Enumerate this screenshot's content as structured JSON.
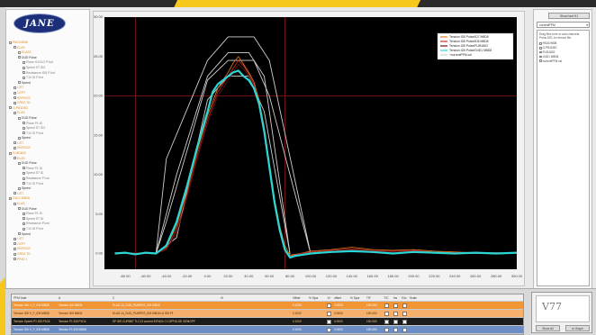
{
  "app": {
    "logo_text": "JANE"
  },
  "tree": {
    "items": [
      {
        "label": "PAD1H808",
        "cls": "orange",
        "indent": 0
      },
      {
        "label": "ELAS",
        "cls": "orange",
        "indent": 1
      },
      {
        "label": "ELAS2",
        "cls": "orange",
        "indent": 2
      },
      {
        "label": "DUD Pulse",
        "cls": "dark",
        "indent": 2
      },
      {
        "label": "Plane H1OLD P1nd",
        "cls": "gray",
        "indent": 3
      },
      {
        "label": "Speed ST ID2",
        "cls": "gray",
        "indent": 3
      },
      {
        "label": "Resistance ID8 P1nd",
        "cls": "gray",
        "indent": 3
      },
      {
        "label": "T10 ID P1nd",
        "cls": "gray",
        "indent": 3
      },
      {
        "label": "Speed",
        "cls": "dark",
        "indent": 2
      },
      {
        "label": "LIST",
        "cls": "orange",
        "indent": 1
      },
      {
        "label": "CEPT",
        "cls": "orange",
        "indent": 1
      },
      {
        "label": "SERVICE",
        "cls": "orange",
        "indent": 1
      },
      {
        "label": "GRD2 TD",
        "cls": "orange",
        "indent": 1
      },
      {
        "label": "G-PB1D6D",
        "cls": "orange",
        "indent": 0
      },
      {
        "label": "ELAS",
        "cls": "orange",
        "indent": 1
      },
      {
        "label": "DUD Pulse",
        "cls": "dark",
        "indent": 2
      },
      {
        "label": "Plane P1 ID",
        "cls": "gray",
        "indent": 3
      },
      {
        "label": "Speed ST ID2",
        "cls": "gray",
        "indent": 3
      },
      {
        "label": "T10 ID P1nd",
        "cls": "gray",
        "indent": 3
      },
      {
        "label": "Speed",
        "cls": "dark",
        "indent": 2
      },
      {
        "label": "LIST",
        "cls": "orange",
        "indent": 1
      },
      {
        "label": "SERVICE",
        "cls": "orange",
        "indent": 1
      },
      {
        "label": "FLIB1802",
        "cls": "orange",
        "indent": 0
      },
      {
        "label": "ELAS",
        "cls": "orange",
        "indent": 1
      },
      {
        "label": "DUD Pulse",
        "cls": "dark",
        "indent": 2
      },
      {
        "label": "Plane P1 ID",
        "cls": "gray",
        "indent": 3
      },
      {
        "label": "Speed ST ID",
        "cls": "gray",
        "indent": 3
      },
      {
        "label": "Resistance P1nd",
        "cls": "gray",
        "indent": 3
      },
      {
        "label": "T10 ID P1nd",
        "cls": "gray",
        "indent": 3
      },
      {
        "label": "Speed",
        "cls": "dark",
        "indent": 2
      },
      {
        "label": "LIST",
        "cls": "orange",
        "indent": 1
      },
      {
        "label": "G4D1 M8D8",
        "cls": "orange",
        "indent": 0
      },
      {
        "label": "ELAS",
        "cls": "orange",
        "indent": 1
      },
      {
        "label": "DUD Pulse",
        "cls": "dark",
        "indent": 2
      },
      {
        "label": "Plane P1 ID",
        "cls": "gray",
        "indent": 3
      },
      {
        "label": "Speed ST ID",
        "cls": "gray",
        "indent": 3
      },
      {
        "label": "Resistance P1nd",
        "cls": "gray",
        "indent": 3
      },
      {
        "label": "T10 ID P1nd",
        "cls": "gray",
        "indent": 3
      },
      {
        "label": "Speed",
        "cls": "dark",
        "indent": 2
      },
      {
        "label": "LIST",
        "cls": "orange",
        "indent": 1
      },
      {
        "label": "CEPT",
        "cls": "orange",
        "indent": 1
      },
      {
        "label": "SERVICE",
        "cls": "orange",
        "indent": 1
      },
      {
        "label": "GRD2 TD",
        "cls": "orange",
        "indent": 1
      },
      {
        "label": "PFAD 1",
        "cls": "orange",
        "indent": 1
      }
    ]
  },
  "right_panel": {
    "button_label": "Show last H1",
    "select_value": "currentPFM",
    "hint": "Drag files here to add channels. Press DEL to remove file.",
    "items": [
      "PAD1H808",
      "G-PB1D6D",
      "FLIB1802",
      "G4D1 M8D8",
      "currentPFM.csl"
    ]
  },
  "grid": {
    "header": [
      "PFM Date",
      "A",
      "C",
      "Vl",
      "Offset",
      "% Spur",
      "Vl",
      "offset",
      "% Spur",
      "T/F",
      "T/C",
      "Ins",
      "Exc",
      "Scale"
    ],
    "rows": [
      {
        "cls": "orange",
        "cells": [
          "Tension ID5 V_F_ID5 M8D8",
          "Tension ID5 M8D8",
          "ELAS L6_DUD_PUMPES_ID5 M8D8",
          "",
          "0.1000",
          "",
          "",
          "0.0000",
          "",
          "100.000",
          "",
          "",
          "",
          ""
        ]
      },
      {
        "cls": "orange-light",
        "cells": [
          "Tension ID5 V_F_ID5 M8D8",
          "Tension ID5 M8D8",
          "ELAS L6_DUD_PUMPES_ID5 M8D8 L6 ID5 P1",
          "",
          "0.1000",
          "",
          "",
          "0.0000",
          "",
          "100.000",
          "",
          "",
          "",
          ""
        ]
      },
      {
        "cls": "selected",
        "cells": [
          "Tension Speed P1 ID5 P1D4",
          "Tension P1 ID5 P1D4",
          "SP ID5 CUR5B7 TLC13 current IDF4D4 Ci CIPPULSE GEMOPF",
          "",
          "0.1000",
          "",
          "",
          "0.0000",
          "",
          "100.000",
          "",
          "",
          "",
          ""
        ]
      },
      {
        "cls": "blue",
        "cells": [
          "Tension ID5 V_F_ID5 M8D8",
          "Tension P1 ID5 M8D8",
          "",
          "",
          "0.1000",
          "",
          "",
          "0.0000",
          "",
          "100.000",
          "",
          "",
          "",
          ""
        ]
      }
    ]
  },
  "thumbnail": {
    "label": "V77",
    "btn_left": "Show All",
    "btn_right": "to Graph"
  },
  "chart_data": {
    "type": "line",
    "title": "",
    "xlabel": "",
    "ylabel": "",
    "xlim": [
      -100,
      300
    ],
    "ylim": [
      -2,
      30
    ],
    "x_ticks": [
      "-80.00",
      "-60.00",
      "-40.00",
      "-20.00",
      "0.00",
      "20.00",
      "40.00",
      "60.00",
      "80.00",
      "100.00",
      "120.00",
      "140.00",
      "160.00",
      "180.00",
      "200.00",
      "220.00",
      "240.00",
      "260.00",
      "280.00",
      "300.00"
    ],
    "y_ticks": [
      "0.00",
      "5.00",
      "10.00",
      "15.00",
      "20.00",
      "25.00",
      "30.00"
    ],
    "legend": [
      {
        "name": "Tension ID5 Pulse/ID7 M8D8",
        "color": "#e87c1a"
      },
      {
        "name": "Tension ID5 Pulse/ID5 M8D8",
        "color": "#c82a2a"
      },
      {
        "name": "Tension ID5 Pulse/FLIB1802",
        "color": "#6b1414"
      },
      {
        "name": "Tension ID5 Pulse/G4D1 M8D8",
        "color": "#2ad6d6"
      },
      {
        "name": "+currentPFM.csl",
        "color": "#cfcfcf"
      }
    ],
    "legend_position": "top-right",
    "grid": false,
    "reference_lines": [
      {
        "axis": "y",
        "value": 20.0,
        "color": "#8b1a1a"
      },
      {
        "axis": "x",
        "value": -70.0,
        "color": "#8b1a1a"
      },
      {
        "axis": "x",
        "value": 75.0,
        "color": "#8b1a1a"
      }
    ],
    "series": [
      {
        "name": "Tension ID5 Pulse/G4D1 M8D8",
        "color": "#2ad6d6",
        "width": 2.2,
        "x": [
          -90,
          -80,
          -70,
          -60,
          -50,
          -40,
          -30,
          -20,
          -10,
          0,
          5,
          10,
          15,
          20,
          25,
          30,
          35,
          40,
          45,
          50,
          55,
          60,
          65,
          70,
          75,
          80,
          85,
          90,
          100,
          110,
          120,
          140,
          160,
          180,
          200,
          220,
          240,
          260,
          280,
          300
        ],
        "y": [
          0.0,
          0.1,
          -0.1,
          0.1,
          0.0,
          1.0,
          4.0,
          8.5,
          13.5,
          18.0,
          20.5,
          21.5,
          22.0,
          22.5,
          23.0,
          23.2,
          22.5,
          22.0,
          21.0,
          19.0,
          15.5,
          11.0,
          6.5,
          3.0,
          0.5,
          -0.5,
          -0.3,
          -0.2,
          0.0,
          0.1,
          0.2,
          0.3,
          0.2,
          0.0,
          0.2,
          0.1,
          0.0,
          0.1,
          0.0,
          0.1
        ]
      },
      {
        "name": "Tension ID5 Pulse/ID7 M8D8",
        "color": "#e87c1a",
        "width": 0.8,
        "x": [
          -90,
          -70,
          -50,
          -40,
          -30,
          -20,
          -10,
          0,
          10,
          20,
          25,
          30,
          35,
          40,
          45,
          50,
          55,
          60,
          65,
          70,
          75,
          80,
          90,
          100,
          120,
          140,
          160,
          180,
          200,
          220,
          240,
          260,
          280,
          300
        ],
        "y": [
          0.0,
          0.0,
          0.1,
          0.8,
          3.5,
          8.0,
          13.0,
          17.5,
          21.0,
          23.0,
          24.2,
          25.0,
          24.0,
          23.0,
          21.8,
          19.5,
          16.0,
          11.5,
          7.0,
          3.5,
          1.0,
          -0.2,
          0.0,
          0.3,
          0.5,
          0.8,
          0.5,
          0.4,
          0.5,
          0.3,
          0.2,
          0.1,
          0.1,
          0.0
        ]
      },
      {
        "name": "Tension ID5 Pulse/ID5 M8D8",
        "color": "#c82a2a",
        "width": 0.8,
        "x": [
          -90,
          -70,
          -50,
          -40,
          -30,
          -20,
          -10,
          0,
          10,
          20,
          25,
          30,
          35,
          40,
          45,
          50,
          55,
          60,
          65,
          70,
          75,
          80,
          90,
          100,
          120,
          140,
          160,
          180,
          200,
          220,
          240,
          260,
          280,
          300
        ],
        "y": [
          0.1,
          0.0,
          0.0,
          0.6,
          3.0,
          7.5,
          12.5,
          17.0,
          20.5,
          22.5,
          23.5,
          24.5,
          23.8,
          22.8,
          21.5,
          19.0,
          15.5,
          11.0,
          6.5,
          3.0,
          0.5,
          -0.3,
          0.0,
          0.2,
          0.4,
          0.6,
          0.4,
          0.3,
          0.4,
          0.2,
          0.1,
          0.0,
          0.1,
          0.0
        ]
      },
      {
        "name": "Tension ID5 Pulse/FLIB1802",
        "color": "#6b1414",
        "width": 0.8,
        "x": [
          -90,
          -70,
          -50,
          -40,
          -30,
          -20,
          -10,
          0,
          10,
          20,
          25,
          30,
          35,
          40,
          45,
          50,
          55,
          60,
          65,
          70,
          75,
          80,
          90,
          100,
          120,
          140,
          160,
          180,
          200,
          220,
          240,
          260,
          280,
          300
        ],
        "y": [
          0.0,
          0.1,
          0.0,
          0.5,
          2.5,
          7.0,
          12.0,
          16.5,
          20.0,
          22.0,
          23.0,
          24.0,
          23.4,
          22.5,
          21.2,
          18.6,
          15.0,
          10.5,
          6.0,
          2.6,
          0.3,
          -0.4,
          -0.1,
          0.1,
          0.3,
          0.5,
          0.3,
          0.2,
          0.3,
          0.1,
          0.0,
          0.0,
          0.0,
          0.0
        ]
      },
      {
        "name": "+currentPFM.csl",
        "color": "#cfcfcf",
        "width": 0.9,
        "x": [
          -50,
          -40,
          0,
          20,
          45,
          60,
          100,
          60,
          45,
          20,
          0,
          -40,
          -50
        ],
        "y": [
          0.0,
          12.0,
          24.5,
          27.5,
          27.5,
          24.5,
          0.0,
          20.0,
          24.5,
          24.5,
          22.0,
          4.0,
          0.0
        ]
      },
      {
        "name": "+currentPFM.csl",
        "color": "#cfcfcf",
        "width": 0.9,
        "x": [
          -50,
          -30,
          0,
          20,
          40,
          55,
          80,
          55,
          40,
          20,
          0,
          -30,
          -50
        ],
        "y": [
          0.0,
          10.0,
          22.5,
          25.5,
          25.5,
          22.5,
          0.0,
          18.0,
          22.5,
          22.5,
          19.5,
          2.0,
          0.0
        ]
      }
    ]
  }
}
